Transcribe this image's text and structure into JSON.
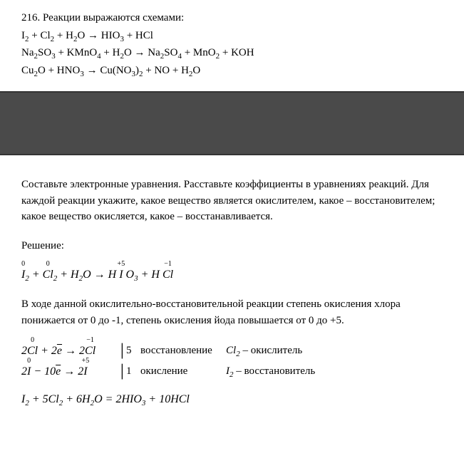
{
  "top": {
    "heading": "216. Реакции выражаются схемами:",
    "reaction1_html": "I<span class='sub'>2</span> + Cl<span class='sub'>2</span> + H<span class='sub'>2</span>O → HIO<span class='sub'>3</span> + HCl",
    "reaction2_html": "Na<span class='sub'>2</span>SO<span class='sub'>3</span> + KMnO<span class='sub'>4</span> + H<span class='sub'>2</span>O → Na<span class='sub'>2</span>SO<span class='sub'>4</span> + MnO<span class='sub'>2</span> + KOH",
    "reaction3_html": "Cu<span class='sub'>2</span>O + HNO<span class='sub'>3</span> → Cu(NO<span class='sub'>3</span>)<span class='sub'>2</span> + NO + H<span class='sub'>2</span>O"
  },
  "bottom": {
    "task_text": "Составьте электронные уравнения. Расставьте коэффициенты в уравнениях реакций. Для каждой реакции укажите, какое вещество является окислителем, какое – восстановителем; какое вещество окисляется, какое – восстанавливается.",
    "solution_label": "Решение:",
    "formula1_html": "<span class='ox-wrap'>I<span class='ox-state'>0</span></span><span class='sub'>2</span> + <span class='ox-wrap'>Cl<span class='ox-state'>0</span></span><span class='sub'>2</span> + H<span class='sub'>2</span>O → H <span class='ox-wrap'>I<span class='ox-state'>+5</span></span> O<span class='sub'>3</span> + H <span class='ox-wrap'>Cl<span class='ox-state'>−1</span></span>",
    "explain_text": "В ходе данной окислительно-восстановительной реакции степень окисления хлора понижается от 0 до -1, степень окисления йода повышается от 0 до +5.",
    "half1": {
      "eq_html": "2<span class='ox-wrap'>Cl<span class='ox-state'>0</span></span> + 2<span class='overline'>e</span> → 2<span class='ox-wrap'>Cl<span class='ox-state'>−1</span></span>",
      "coef": "5",
      "process": "восстановление",
      "agent_html": "<span class='sp'>Cl<span class='sub'>2</span></span> – окислитель"
    },
    "half2": {
      "eq_html": "2<span class='ox-wrap'>I<span class='ox-state'>0</span></span> − 10<span class='overline'>e</span> → 2<span class='ox-wrap'>I<span class='ox-state'>+5</span></span>",
      "coef": "1",
      "process": "окисление",
      "agent_html": "<span class='sp'>I<span class='sub'>2</span></span> – восстановитель"
    },
    "final_html": "I<span class='sub'>2</span> + 5Cl<span class='sub'>2</span> + 6H<span class='sub'>2</span>O = 2HIO<span class='sub'>3</span> + 10HCl"
  }
}
